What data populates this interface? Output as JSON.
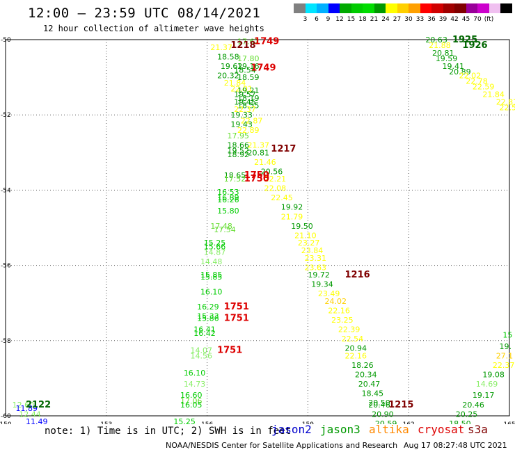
{
  "title": "12:00 – 23:59 UTC 08/14/2021",
  "subtitle": "12 hour collection of altimeter wave heights",
  "scale": {
    "colors": [
      "#808080",
      "#00e5ff",
      "#00b0ff",
      "#0000ff",
      "#00aa00",
      "#00cc00",
      "#00dd00",
      "#009900",
      "#ffff00",
      "#ffd000",
      "#ffa000",
      "#ff0000",
      "#d00000",
      "#a00000",
      "#800000",
      "#990099",
      "#cc00cc",
      "#f0c0f0",
      "#000000"
    ],
    "labels": [
      "3",
      "6",
      "9",
      "12",
      "15",
      "18",
      "21",
      "24",
      "27",
      "30",
      "33",
      "36",
      "39",
      "42",
      "45",
      "70",
      "(ft)"
    ]
  },
  "axes": {
    "lon_labels": [
      "150",
      "153",
      "156",
      "159",
      "162",
      "165"
    ],
    "lat_labels": [
      "-50",
      "-52",
      "-54",
      "-56",
      "-58",
      "-60"
    ]
  },
  "observations": [
    {
      "t": "17.62",
      "lon": 156.9,
      "lat": -50.05,
      "c": "#66dd33"
    },
    {
      "t": "21.37",
      "lon": 156.1,
      "lat": -50.2,
      "c": "#ffff00"
    },
    {
      "t": "18.58",
      "lon": 156.3,
      "lat": -50.45,
      "c": "#009900"
    },
    {
      "t": "17.80",
      "lon": 156.9,
      "lat": -50.5,
      "c": "#66dd33"
    },
    {
      "t": "19.62",
      "lon": 156.4,
      "lat": -50.7,
      "c": "#009900"
    },
    {
      "t": "19.16",
      "lon": 156.9,
      "lat": -50.7,
      "c": "#009900"
    },
    {
      "t": "18.54",
      "lon": 156.8,
      "lat": -50.8,
      "c": "#009900"
    },
    {
      "t": "20.32",
      "lon": 156.3,
      "lat": -50.95,
      "c": "#009900"
    },
    {
      "t": "18.59",
      "lon": 156.9,
      "lat": -51.0,
      "c": "#009900"
    },
    {
      "t": "21.84",
      "lon": 156.5,
      "lat": -51.15,
      "c": "#ffff00"
    },
    {
      "t": "22.01",
      "lon": 156.7,
      "lat": -51.3,
      "c": "#ffff00"
    },
    {
      "t": "19.21",
      "lon": 156.9,
      "lat": -51.35,
      "c": "#009900"
    },
    {
      "t": "19.57",
      "lon": 156.8,
      "lat": -51.45,
      "c": "#009900"
    },
    {
      "t": "18.19",
      "lon": 156.9,
      "lat": -51.55,
      "c": "#009900"
    },
    {
      "t": "19.45",
      "lon": 156.8,
      "lat": -51.65,
      "c": "#009900"
    },
    {
      "t": "18.55",
      "lon": 156.9,
      "lat": -51.75,
      "c": "#009900"
    },
    {
      "t": "22.37",
      "lon": 156.8,
      "lat": -51.85,
      "c": "#ffff00"
    },
    {
      "t": "19.33",
      "lon": 156.7,
      "lat": -52.0,
      "c": "#009900"
    },
    {
      "t": "22.87",
      "lon": 157.0,
      "lat": -52.15,
      "c": "#ffff00"
    },
    {
      "t": "19.43",
      "lon": 156.7,
      "lat": -52.25,
      "c": "#009900"
    },
    {
      "t": "22.89",
      "lon": 156.9,
      "lat": -52.4,
      "c": "#ffff00"
    },
    {
      "t": "17.95",
      "lon": 156.6,
      "lat": -52.55,
      "c": "#66dd33"
    },
    {
      "t": "18.66",
      "lon": 156.6,
      "lat": -52.8,
      "c": "#009900"
    },
    {
      "t": "21.37",
      "lon": 157.2,
      "lat": -52.8,
      "c": "#ffff00"
    },
    {
      "t": "19.52",
      "lon": 156.6,
      "lat": -52.95,
      "c": "#009900"
    },
    {
      "t": "20.81",
      "lon": 157.2,
      "lat": -53.0,
      "c": "#009900"
    },
    {
      "t": "18.92",
      "lon": 156.6,
      "lat": -53.05,
      "c": "#009900"
    },
    {
      "t": "21.46",
      "lon": 157.4,
      "lat": -53.25,
      "c": "#ffff00"
    },
    {
      "t": "20.56",
      "lon": 157.6,
      "lat": -53.5,
      "c": "#009900"
    },
    {
      "t": "18.65",
      "lon": 156.5,
      "lat": -53.6,
      "c": "#009900"
    },
    {
      "t": "17.52",
      "lon": 156.5,
      "lat": -53.7,
      "c": "#66dd33"
    },
    {
      "t": "22.21",
      "lon": 157.7,
      "lat": -53.7,
      "c": "#ffff00"
    },
    {
      "t": "22.08",
      "lon": 157.7,
      "lat": -53.95,
      "c": "#ffff00"
    },
    {
      "t": "16.53",
      "lon": 156.3,
      "lat": -54.05,
      "c": "#00cc00"
    },
    {
      "t": "16.89",
      "lon": 156.3,
      "lat": -54.2,
      "c": "#00cc00"
    },
    {
      "t": "22.45",
      "lon": 157.9,
      "lat": -54.2,
      "c": "#ffff00"
    },
    {
      "t": "16.26",
      "lon": 156.3,
      "lat": -54.25,
      "c": "#00cc00"
    },
    {
      "t": "19.92",
      "lon": 158.2,
      "lat": -54.45,
      "c": "#009900"
    },
    {
      "t": "15.80",
      "lon": 156.3,
      "lat": -54.55,
      "c": "#00cc00"
    },
    {
      "t": "21.79",
      "lon": 158.2,
      "lat": -54.7,
      "c": "#ffff00"
    },
    {
      "t": "17.48",
      "lon": 156.1,
      "lat": -54.95,
      "c": "#66dd33"
    },
    {
      "t": "19.50",
      "lon": 158.5,
      "lat": -54.95,
      "c": "#009900"
    },
    {
      "t": "17.54",
      "lon": 156.2,
      "lat": -55.05,
      "c": "#66dd33"
    },
    {
      "t": "21.10",
      "lon": 158.6,
      "lat": -55.2,
      "c": "#ffff00"
    },
    {
      "t": "15.25",
      "lon": 155.9,
      "lat": -55.4,
      "c": "#00cc00"
    },
    {
      "t": "23.27",
      "lon": 158.7,
      "lat": -55.4,
      "c": "#ffff00"
    },
    {
      "t": "15.66",
      "lon": 155.9,
      "lat": -55.5,
      "c": "#00cc00"
    },
    {
      "t": "23.84",
      "lon": 158.8,
      "lat": -55.6,
      "c": "#ffff00"
    },
    {
      "t": "14.87",
      "lon": 155.9,
      "lat": -55.65,
      "c": "#88ee66"
    },
    {
      "t": "23.31",
      "lon": 158.9,
      "lat": -55.8,
      "c": "#ffff00"
    },
    {
      "t": "14.48",
      "lon": 155.8,
      "lat": -55.9,
      "c": "#88ee66"
    },
    {
      "t": "23.63",
      "lon": 158.9,
      "lat": -56.05,
      "c": "#ffff00"
    },
    {
      "t": "19.72",
      "lon": 159.0,
      "lat": -56.25,
      "c": "#009900"
    },
    {
      "t": "15.85",
      "lon": 155.8,
      "lat": -56.25,
      "c": "#00cc00"
    },
    {
      "t": "15.85",
      "lon": 155.8,
      "lat": -56.3,
      "c": "#00cc00"
    },
    {
      "t": "19.34",
      "lon": 159.1,
      "lat": -56.5,
      "c": "#009900"
    },
    {
      "t": "16.10",
      "lon": 155.8,
      "lat": -56.7,
      "c": "#00cc00"
    },
    {
      "t": "23.49",
      "lon": 159.3,
      "lat": -56.75,
      "c": "#ffff00"
    },
    {
      "t": "24.02",
      "lon": 159.5,
      "lat": -56.95,
      "c": "#ffd000"
    },
    {
      "t": "16.29",
      "lon": 155.7,
      "lat": -57.1,
      "c": "#00cc00"
    },
    {
      "t": "22.16",
      "lon": 159.6,
      "lat": -57.2,
      "c": "#ffff00"
    },
    {
      "t": "15.33",
      "lon": 155.7,
      "lat": -57.35,
      "c": "#00cc00"
    },
    {
      "t": "15.86",
      "lon": 155.7,
      "lat": -57.4,
      "c": "#00cc00"
    },
    {
      "t": "23.25",
      "lon": 159.7,
      "lat": -57.45,
      "c": "#ffff00"
    },
    {
      "t": "16.41",
      "lon": 155.6,
      "lat": -57.7,
      "c": "#00cc00"
    },
    {
      "t": "22.39",
      "lon": 159.9,
      "lat": -57.7,
      "c": "#ffff00"
    },
    {
      "t": "16.42",
      "lon": 155.6,
      "lat": -57.8,
      "c": "#00cc00"
    },
    {
      "t": "22.54",
      "lon": 160.0,
      "lat": -57.95,
      "c": "#ffff00"
    },
    {
      "t": "20.94",
      "lon": 160.1,
      "lat": -58.2,
      "c": "#009900"
    },
    {
      "t": "14.07",
      "lon": 155.5,
      "lat": -58.25,
      "c": "#88ee66"
    },
    {
      "t": "14.56",
      "lon": 155.5,
      "lat": -58.4,
      "c": "#88ee66"
    },
    {
      "t": "22.16",
      "lon": 160.1,
      "lat": -58.4,
      "c": "#ffff00"
    },
    {
      "t": "18.26",
      "lon": 160.3,
      "lat": -58.65,
      "c": "#009900"
    },
    {
      "t": "16.10",
      "lon": 155.3,
      "lat": -58.85,
      "c": "#00cc00"
    },
    {
      "t": "20.34",
      "lon": 160.4,
      "lat": -58.9,
      "c": "#009900"
    },
    {
      "t": "14.73",
      "lon": 155.3,
      "lat": -59.15,
      "c": "#88ee66"
    },
    {
      "t": "20.47",
      "lon": 160.5,
      "lat": -59.15,
      "c": "#009900"
    },
    {
      "t": "16.60",
      "lon": 155.2,
      "lat": -59.45,
      "c": "#00cc00"
    },
    {
      "t": "18.45",
      "lon": 160.6,
      "lat": -59.4,
      "c": "#009900"
    },
    {
      "t": "17.06",
      "lon": 155.2,
      "lat": -59.6,
      "c": "#66dd33"
    },
    {
      "t": "20.50",
      "lon": 160.8,
      "lat": -59.65,
      "c": "#009900"
    },
    {
      "t": "16.05",
      "lon": 155.2,
      "lat": -59.7,
      "c": "#00cc00"
    },
    {
      "t": "20.46",
      "lon": 160.8,
      "lat": -59.7,
      "c": "#009900"
    },
    {
      "t": "20.90",
      "lon": 160.9,
      "lat": -59.95,
      "c": "#009900"
    },
    {
      "t": "15.25",
      "lon": 155.0,
      "lat": -60.15,
      "c": "#00cc00"
    },
    {
      "t": "20.59",
      "lon": 161.0,
      "lat": -60.2,
      "c": "#009900"
    },
    {
      "t": "12.60",
      "lon": 150.2,
      "lat": -59.7,
      "c": "#88ee66"
    },
    {
      "t": "11.89",
      "lon": 150.3,
      "lat": -59.8,
      "c": "#0000ff"
    },
    {
      "t": "12.44",
      "lon": 150.4,
      "lat": -59.95,
      "c": "#88ee66"
    },
    {
      "t": "11.49",
      "lon": 150.6,
      "lat": -60.15,
      "c": "#0000ff"
    },
    {
      "t": "20.63",
      "lon": 162.5,
      "lat": -50.0,
      "c": "#009900"
    },
    {
      "t": "21.88",
      "lon": 162.6,
      "lat": -50.15,
      "c": "#ffff00"
    },
    {
      "t": "20.81",
      "lon": 162.7,
      "lat": -50.35,
      "c": "#009900"
    },
    {
      "t": "19.59",
      "lon": 162.8,
      "lat": -50.5,
      "c": "#009900"
    },
    {
      "t": "19.41",
      "lon": 163.0,
      "lat": -50.7,
      "c": "#009900"
    },
    {
      "t": "20.89",
      "lon": 163.2,
      "lat": -50.85,
      "c": "#009900"
    },
    {
      "t": "22.02",
      "lon": 163.5,
      "lat": -50.95,
      "c": "#ffff00"
    },
    {
      "t": "22.78",
      "lon": 163.7,
      "lat": -51.1,
      "c": "#ffff00"
    },
    {
      "t": "22.59",
      "lon": 163.9,
      "lat": -51.25,
      "c": "#ffff00"
    },
    {
      "t": "21.84",
      "lon": 164.2,
      "lat": -51.45,
      "c": "#ffff00"
    },
    {
      "t": "22.81",
      "lon": 164.6,
      "lat": -51.65,
      "c": "#ffff00"
    },
    {
      "t": "22.51",
      "lon": 164.7,
      "lat": -51.8,
      "c": "#ffff00"
    },
    {
      "t": "15",
      "lon": 164.8,
      "lat": -57.85,
      "c": "#00cc00"
    },
    {
      "t": "19.",
      "lon": 164.7,
      "lat": -58.15,
      "c": "#009900"
    },
    {
      "t": "27.1",
      "lon": 164.6,
      "lat": -58.4,
      "c": "#ffd000"
    },
    {
      "t": "22.37",
      "lon": 164.5,
      "lat": -58.65,
      "c": "#ffff00"
    },
    {
      "t": "19.08",
      "lon": 164.2,
      "lat": -58.9,
      "c": "#009900"
    },
    {
      "t": "14.69",
      "lon": 164.0,
      "lat": -59.15,
      "c": "#88ee66"
    },
    {
      "t": "19.17",
      "lon": 163.9,
      "lat": -59.45,
      "c": "#009900"
    },
    {
      "t": "20.46",
      "lon": 163.6,
      "lat": -59.7,
      "c": "#009900"
    },
    {
      "t": "20.25",
      "lon": 163.4,
      "lat": -59.95,
      "c": "#009900"
    },
    {
      "t": "18.50",
      "lon": 163.2,
      "lat": -60.2,
      "c": "#009900"
    }
  ],
  "passes": [
    {
      "t": "1749",
      "lon": 157.4,
      "lat": -50.05,
      "c": "#dd0000"
    },
    {
      "t": "1218",
      "lon": 156.7,
      "lat": -50.15,
      "c": "#800000"
    },
    {
      "t": "1749",
      "lon": 157.3,
      "lat": -50.75,
      "c": "#dd0000"
    },
    {
      "t": "1217",
      "lon": 157.9,
      "lat": -52.9,
      "c": "#800000"
    },
    {
      "t": "1750",
      "lon": 157.1,
      "lat": -53.6,
      "c": "#dd0000"
    },
    {
      "t": "1750",
      "lon": 157.1,
      "lat": -53.7,
      "c": "#dd0000"
    },
    {
      "t": "1216",
      "lon": 160.1,
      "lat": -56.25,
      "c": "#800000"
    },
    {
      "t": "1751",
      "lon": 156.5,
      "lat": -57.1,
      "c": "#dd0000"
    },
    {
      "t": "1751",
      "lon": 156.5,
      "lat": -57.4,
      "c": "#dd0000"
    },
    {
      "t": "1751",
      "lon": 156.3,
      "lat": -58.25,
      "c": "#dd0000"
    },
    {
      "t": "1215",
      "lon": 161.4,
      "lat": -59.7,
      "c": "#800000"
    },
    {
      "t": "2122",
      "lon": 150.6,
      "lat": -59.7,
      "c": "#006600"
    },
    {
      "t": "1925",
      "lon": 163.3,
      "lat": -50.0,
      "c": "#006600"
    },
    {
      "t": "1926",
      "lon": 163.6,
      "lat": -50.15,
      "c": "#006600"
    }
  ],
  "note": "note: 1) Time is in UTC; 2) SWH is in feet",
  "satellites": [
    {
      "name": "jason2",
      "color": "#0000cc"
    },
    {
      "name": "jason3",
      "color": "#009900"
    },
    {
      "name": "altika",
      "color": "#ff8800"
    },
    {
      "name": "cryosat",
      "color": "#dd0000"
    },
    {
      "name": "s3a",
      "color": "#800000"
    }
  ],
  "footer": "NOAA/NESDIS Center for Satellite Applications and Research",
  "timestamp": "Aug 17 08:27:48 UTC 2021"
}
